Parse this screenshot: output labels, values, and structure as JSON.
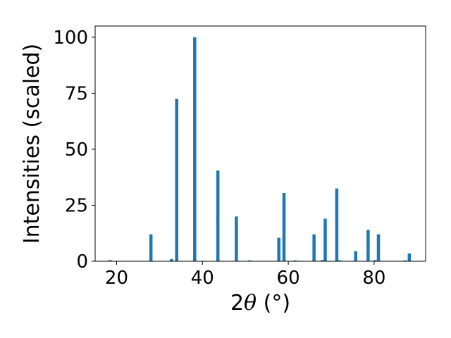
{
  "chart_data": {
    "type": "bar",
    "title": "",
    "xlabel_prefix": "2",
    "xlabel_symbol": "θ",
    "xlabel_unit": " (°)",
    "ylabel": "Intensities (scaled)",
    "xlim": [
      15,
      92
    ],
    "ylim": [
      0,
      105
    ],
    "xticks": [
      20,
      40,
      60,
      80
    ],
    "yticks": [
      0,
      25,
      50,
      75,
      100
    ],
    "grid": false,
    "bar_color": "#1f77b4",
    "series": [
      {
        "x": [
          18.5,
          28.0,
          32.8,
          34.0,
          38.2,
          43.6,
          47.9,
          51.0,
          57.8,
          59.0,
          61.6,
          66.0,
          67.9,
          68.6,
          71.3,
          72.0,
          75.7,
          78.6,
          80.3,
          81.0,
          87.2,
          88.2
        ],
        "values": [
          0.5,
          12,
          1,
          72.5,
          100,
          40.5,
          20,
          0.4,
          10.5,
          30.5,
          0.4,
          12,
          0.5,
          19,
          32.5,
          0.4,
          4.5,
          14,
          0.5,
          12,
          0.4,
          3.5
        ]
      }
    ]
  }
}
